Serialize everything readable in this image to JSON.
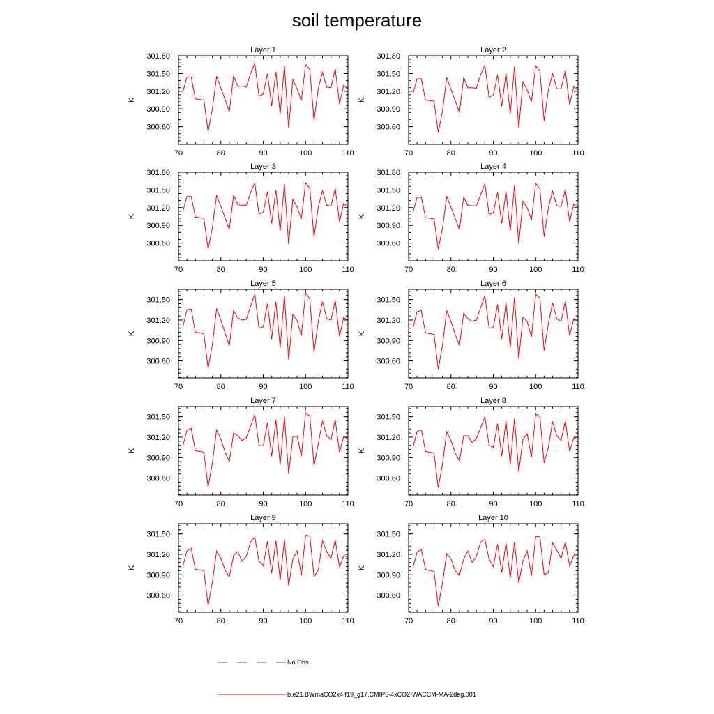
{
  "title": "soil temperature",
  "colors": {
    "line": "#ff0000",
    "no_obs": "#5a5aa8",
    "axis": "#000000"
  },
  "legend": {
    "no_obs_label": "No Obs",
    "case_label": "b.e21.BWmaCO2x4.f19_g17.CMIP6-4xCO2-WACCM-MA-2deg.001"
  },
  "chart_data": [
    {
      "type": "line",
      "title": "Layer 1",
      "ylabel": "K",
      "xlim": [
        70,
        110
      ],
      "ylim": [
        300.3,
        301.8
      ],
      "xticks": [
        "70",
        "80",
        "90",
        "100",
        "110"
      ],
      "yticks": [
        "300.60",
        "300.90",
        "301.20",
        "301.50",
        "301.80"
      ],
      "x": [
        71,
        72,
        73,
        74,
        75,
        76,
        77,
        78,
        79,
        80,
        81,
        82,
        83,
        84,
        85,
        86,
        87,
        88,
        89,
        90,
        91,
        92,
        93,
        94,
        95,
        96,
        97,
        98,
        99,
        100,
        101,
        102,
        103,
        104,
        105,
        106,
        107,
        108,
        109,
        110
      ],
      "series": [
        {
          "values": [
            301.18,
            301.44,
            301.44,
            301.07,
            301.06,
            301.05,
            300.52,
            300.9,
            301.45,
            301.25,
            301.06,
            300.85,
            301.46,
            301.28,
            301.29,
            301.27,
            301.5,
            301.67,
            301.12,
            301.15,
            301.5,
            300.95,
            301.53,
            300.81,
            301.63,
            300.57,
            301.4,
            301.24,
            301.04,
            301.65,
            301.57,
            300.7,
            301.25,
            301.52,
            301.27,
            301.26,
            301.58,
            300.98,
            301.3,
            301.24
          ]
        }
      ]
    },
    {
      "type": "line",
      "title": "Layer 2",
      "ylabel": "K",
      "xlim": [
        70,
        110
      ],
      "ylim": [
        300.3,
        301.8
      ],
      "xticks": [
        "70",
        "80",
        "90",
        "100",
        "110"
      ],
      "yticks": [
        "300.60",
        "300.90",
        "301.20",
        "301.50",
        "301.80"
      ],
      "x": [
        71,
        72,
        73,
        74,
        75,
        76,
        77,
        78,
        79,
        80,
        81,
        82,
        83,
        84,
        85,
        86,
        87,
        88,
        89,
        90,
        91,
        92,
        93,
        94,
        95,
        96,
        97,
        98,
        99,
        100,
        101,
        102,
        103,
        104,
        105,
        106,
        107,
        108,
        109,
        110
      ],
      "series": [
        {
          "values": [
            301.15,
            301.41,
            301.41,
            301.05,
            301.04,
            301.03,
            300.5,
            300.86,
            301.43,
            301.23,
            301.04,
            300.84,
            301.43,
            301.26,
            301.26,
            301.25,
            301.48,
            301.64,
            301.1,
            301.13,
            301.48,
            300.94,
            301.51,
            300.81,
            301.62,
            300.57,
            301.36,
            301.22,
            301.02,
            301.63,
            301.54,
            300.7,
            301.22,
            301.5,
            301.24,
            301.24,
            301.55,
            300.97,
            301.28,
            301.21
          ]
        }
      ]
    },
    {
      "type": "line",
      "title": "Layer 3",
      "ylabel": "K",
      "xlim": [
        70,
        110
      ],
      "ylim": [
        300.3,
        301.8
      ],
      "xticks": [
        "70",
        "80",
        "90",
        "100",
        "110"
      ],
      "yticks": [
        "300.60",
        "300.90",
        "301.20",
        "301.50",
        "301.80"
      ],
      "x": [
        71,
        72,
        73,
        74,
        75,
        76,
        77,
        78,
        79,
        80,
        81,
        82,
        83,
        84,
        85,
        86,
        87,
        88,
        89,
        90,
        91,
        92,
        93,
        94,
        95,
        96,
        97,
        98,
        99,
        100,
        101,
        102,
        103,
        104,
        105,
        106,
        107,
        108,
        109,
        110
      ],
      "series": [
        {
          "values": [
            301.13,
            301.39,
            301.39,
            301.04,
            301.03,
            301.02,
            300.5,
            300.86,
            301.41,
            301.22,
            301.03,
            300.83,
            301.41,
            301.25,
            301.24,
            301.24,
            301.45,
            301.62,
            301.09,
            301.12,
            301.47,
            300.93,
            301.5,
            300.8,
            301.6,
            300.58,
            301.34,
            301.21,
            301.01,
            301.62,
            301.53,
            300.7,
            301.21,
            301.49,
            301.24,
            301.23,
            301.53,
            300.96,
            301.27,
            301.21
          ]
        }
      ]
    },
    {
      "type": "line",
      "title": "Layer 4",
      "ylabel": "K",
      "xlim": [
        70,
        110
      ],
      "ylim": [
        300.3,
        301.8
      ],
      "xticks": [
        "70",
        "80",
        "90",
        "100",
        "110"
      ],
      "yticks": [
        "300.60",
        "300.90",
        "301.20",
        "301.50",
        "301.80"
      ],
      "x": [
        71,
        72,
        73,
        74,
        75,
        76,
        77,
        78,
        79,
        80,
        81,
        82,
        83,
        84,
        85,
        86,
        87,
        88,
        89,
        90,
        91,
        92,
        93,
        94,
        95,
        96,
        97,
        98,
        99,
        100,
        101,
        102,
        103,
        104,
        105,
        106,
        107,
        108,
        109,
        110
      ],
      "series": [
        {
          "values": [
            301.12,
            301.37,
            301.38,
            301.03,
            301.02,
            301.01,
            300.5,
            300.85,
            301.39,
            301.21,
            301.02,
            300.83,
            301.38,
            301.24,
            301.23,
            301.23,
            301.42,
            301.6,
            301.09,
            301.11,
            301.46,
            300.93,
            301.48,
            300.8,
            301.58,
            300.59,
            301.31,
            301.2,
            300.99,
            301.61,
            301.52,
            300.71,
            301.2,
            301.48,
            301.23,
            301.22,
            301.51,
            300.96,
            301.26,
            301.2
          ]
        }
      ]
    },
    {
      "type": "line",
      "title": "Layer 5",
      "ylabel": "K",
      "xlim": [
        70,
        110
      ],
      "ylim": [
        300.35,
        301.65
      ],
      "xticks": [
        "70",
        "80",
        "90",
        "100",
        "110"
      ],
      "yticks": [
        "300.60",
        "300.90",
        "301.20",
        "301.50"
      ],
      "x": [
        71,
        72,
        73,
        74,
        75,
        76,
        77,
        78,
        79,
        80,
        81,
        82,
        83,
        84,
        85,
        86,
        87,
        88,
        89,
        90,
        91,
        92,
        93,
        94,
        95,
        96,
        97,
        98,
        99,
        100,
        101,
        102,
        103,
        104,
        105,
        106,
        107,
        108,
        109,
        110
      ],
      "series": [
        {
          "values": [
            301.09,
            301.35,
            301.36,
            301.02,
            301.01,
            301.0,
            300.49,
            300.84,
            301.37,
            301.2,
            301.01,
            300.82,
            301.34,
            301.23,
            301.2,
            301.21,
            301.4,
            301.58,
            301.08,
            301.1,
            301.44,
            300.92,
            301.47,
            300.79,
            301.56,
            300.61,
            301.28,
            301.19,
            300.97,
            301.6,
            301.51,
            300.73,
            301.18,
            301.47,
            301.22,
            301.2,
            301.49,
            300.96,
            301.24,
            301.19
          ]
        }
      ]
    },
    {
      "type": "line",
      "title": "Layer 6",
      "ylabel": "K",
      "xlim": [
        70,
        110
      ],
      "ylim": [
        300.35,
        301.65
      ],
      "xticks": [
        "70",
        "80",
        "90",
        "100",
        "110"
      ],
      "yticks": [
        "300.60",
        "300.90",
        "301.20",
        "301.50"
      ],
      "x": [
        71,
        72,
        73,
        74,
        75,
        76,
        77,
        78,
        79,
        80,
        81,
        82,
        83,
        84,
        85,
        86,
        87,
        88,
        89,
        90,
        91,
        92,
        93,
        94,
        95,
        96,
        97,
        98,
        99,
        100,
        101,
        102,
        103,
        104,
        105,
        106,
        107,
        108,
        109,
        110
      ],
      "series": [
        {
          "values": [
            301.08,
            301.32,
            301.34,
            301.01,
            301.0,
            300.99,
            300.48,
            300.83,
            301.34,
            301.18,
            300.99,
            300.82,
            301.3,
            301.22,
            301.18,
            301.2,
            301.38,
            301.56,
            301.08,
            301.09,
            301.43,
            300.92,
            301.46,
            300.79,
            301.53,
            300.63,
            301.24,
            301.18,
            300.95,
            301.58,
            301.52,
            300.75,
            301.15,
            301.45,
            301.22,
            301.18,
            301.48,
            300.97,
            301.22,
            301.18
          ]
        }
      ]
    },
    {
      "type": "line",
      "title": "Layer 7",
      "ylabel": "K",
      "xlim": [
        70,
        110
      ],
      "ylim": [
        300.35,
        301.65
      ],
      "xticks": [
        "70",
        "80",
        "90",
        "100",
        "110"
      ],
      "yticks": [
        "300.60",
        "300.90",
        "301.20",
        "301.50"
      ],
      "x": [
        71,
        72,
        73,
        74,
        75,
        76,
        77,
        78,
        79,
        80,
        81,
        82,
        83,
        84,
        85,
        86,
        87,
        88,
        89,
        90,
        91,
        92,
        93,
        94,
        95,
        96,
        97,
        98,
        99,
        100,
        101,
        102,
        103,
        104,
        105,
        106,
        107,
        108,
        109,
        110
      ],
      "series": [
        {
          "values": [
            301.06,
            301.3,
            301.33,
            301.0,
            300.99,
            300.98,
            300.47,
            300.82,
            301.31,
            301.17,
            300.98,
            300.84,
            301.26,
            301.22,
            301.15,
            301.19,
            301.36,
            301.53,
            301.08,
            301.07,
            301.41,
            300.92,
            301.45,
            300.79,
            301.5,
            300.66,
            301.2,
            301.22,
            300.92,
            301.56,
            301.51,
            300.78,
            301.1,
            301.44,
            301.22,
            301.16,
            301.46,
            300.98,
            301.21,
            301.17
          ]
        }
      ]
    },
    {
      "type": "line",
      "title": "Layer 8",
      "ylabel": "K",
      "xlim": [
        70,
        110
      ],
      "ylim": [
        300.35,
        301.65
      ],
      "xticks": [
        "70",
        "80",
        "90",
        "100",
        "110"
      ],
      "yticks": [
        "300.60",
        "300.90",
        "301.20",
        "301.50"
      ],
      "x": [
        71,
        72,
        73,
        74,
        75,
        76,
        77,
        78,
        79,
        80,
        81,
        82,
        83,
        84,
        85,
        86,
        87,
        88,
        89,
        90,
        91,
        92,
        93,
        94,
        95,
        96,
        97,
        98,
        99,
        100,
        101,
        102,
        103,
        104,
        105,
        106,
        107,
        108,
        109,
        110
      ],
      "series": [
        {
          "values": [
            301.04,
            301.28,
            301.31,
            300.99,
            300.98,
            300.97,
            300.46,
            300.8,
            301.28,
            301.15,
            300.97,
            300.85,
            301.22,
            301.22,
            301.12,
            301.18,
            301.34,
            301.5,
            301.08,
            301.05,
            301.4,
            300.92,
            301.44,
            300.8,
            301.47,
            300.69,
            301.17,
            301.25,
            300.9,
            301.54,
            301.5,
            300.82,
            301.05,
            301.43,
            301.22,
            301.15,
            301.44,
            300.99,
            301.19,
            301.17
          ]
        }
      ]
    },
    {
      "type": "line",
      "title": "Layer 9",
      "ylabel": "K",
      "xlim": [
        70,
        110
      ],
      "ylim": [
        300.35,
        301.65
      ],
      "xticks": [
        "70",
        "80",
        "90",
        "100",
        "110"
      ],
      "yticks": [
        "300.60",
        "300.90",
        "301.20",
        "301.50"
      ],
      "x": [
        71,
        72,
        73,
        74,
        75,
        76,
        77,
        78,
        79,
        80,
        81,
        82,
        83,
        84,
        85,
        86,
        87,
        88,
        89,
        90,
        91,
        92,
        93,
        94,
        95,
        96,
        97,
        98,
        99,
        100,
        101,
        102,
        103,
        104,
        105,
        106,
        107,
        108,
        109,
        110
      ],
      "series": [
        {
          "values": [
            301.02,
            301.25,
            301.29,
            300.98,
            300.97,
            300.96,
            300.45,
            300.79,
            301.25,
            301.14,
            300.97,
            300.87,
            301.18,
            301.24,
            301.1,
            301.17,
            301.38,
            301.45,
            301.1,
            301.03,
            301.39,
            300.92,
            301.4,
            300.82,
            301.42,
            300.74,
            301.13,
            301.25,
            300.89,
            301.48,
            301.47,
            300.87,
            300.97,
            301.4,
            301.24,
            301.14,
            301.41,
            301.01,
            301.18,
            301.16
          ]
        }
      ]
    },
    {
      "type": "line",
      "title": "Layer 10",
      "ylabel": "K",
      "xlim": [
        70,
        110
      ],
      "ylim": [
        300.35,
        301.65
      ],
      "xticks": [
        "70",
        "80",
        "90",
        "100",
        "110"
      ],
      "yticks": [
        "300.60",
        "300.90",
        "301.20",
        "301.50"
      ],
      "x": [
        71,
        72,
        73,
        74,
        75,
        76,
        77,
        78,
        79,
        80,
        81,
        82,
        83,
        84,
        85,
        86,
        87,
        88,
        89,
        90,
        91,
        92,
        93,
        94,
        95,
        96,
        97,
        98,
        99,
        100,
        101,
        102,
        103,
        104,
        105,
        106,
        107,
        108,
        109,
        110
      ],
      "series": [
        {
          "values": [
            301.0,
            301.23,
            301.27,
            300.98,
            300.96,
            300.95,
            300.44,
            300.78,
            301.21,
            301.13,
            300.96,
            300.89,
            301.13,
            301.25,
            301.08,
            301.17,
            301.38,
            301.42,
            301.13,
            301.02,
            301.35,
            300.93,
            301.37,
            300.85,
            301.38,
            300.78,
            301.1,
            301.25,
            300.88,
            301.46,
            301.46,
            300.9,
            300.93,
            301.37,
            301.26,
            301.14,
            301.38,
            301.03,
            301.18,
            301.18
          ]
        }
      ]
    }
  ]
}
